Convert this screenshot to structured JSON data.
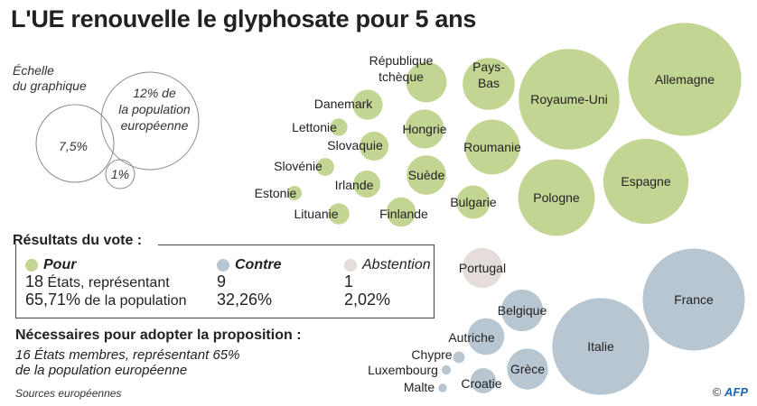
{
  "title": "L'UE renouvelle le glyphosate pour 5 ans",
  "scale": {
    "heading_line1": "Échelle",
    "heading_line2": "du graphique",
    "large_line1": "12% de",
    "large_line2": "la population",
    "large_line3": "européenne",
    "medium": "7,5%",
    "small": "1%"
  },
  "results": {
    "heading": "Résultats du vote :",
    "pour": {
      "label": "Pour",
      "states": "18",
      "states_text": "États, représentant",
      "pct": "65,71%",
      "pct_text": "de la population"
    },
    "contre": {
      "label": "Contre",
      "states": "9",
      "pct": "32,26%"
    },
    "abstention": {
      "label": "Abstention",
      "states": "1",
      "pct": "2,02%"
    }
  },
  "needed": {
    "heading": "Nécessaires pour adopter la proposition :",
    "text_line1": "16 États membres, représentant 65%",
    "text_line2": "de la population européenne"
  },
  "sources": "Sources européennes",
  "credit": {
    "symbol": "©",
    "brand": "AFP"
  },
  "colors": {
    "pour": "#c3d592",
    "contre": "#b8c6d1",
    "abstention": "#e4ddd9",
    "outline": "#8a8a8a"
  },
  "chart_data": {
    "type": "bubble",
    "series": [
      {
        "name": "Pour",
        "values": [
          {
            "label": "République tchèque",
            "value": 2.06
          },
          {
            "label": "Pays-Bas",
            "value": 3.4
          },
          {
            "label": "Royaume-Uni",
            "value": 12.8
          },
          {
            "label": "Allemagne",
            "value": 16.1
          },
          {
            "label": "Danemark",
            "value": 1.13
          },
          {
            "label": "Lettonie",
            "value": 0.38
          },
          {
            "label": "Hongrie",
            "value": 1.92
          },
          {
            "label": "Slovaquie",
            "value": 1.06
          },
          {
            "label": "Roumanie",
            "value": 3.8
          },
          {
            "label": "Slovénie",
            "value": 0.4
          },
          {
            "label": "Suède",
            "value": 1.96
          },
          {
            "label": "Irlande",
            "value": 0.92
          },
          {
            "label": "Estonie",
            "value": 0.26
          },
          {
            "label": "Bulgarie",
            "value": 1.4
          },
          {
            "label": "Pologne",
            "value": 7.4
          },
          {
            "label": "Espagne",
            "value": 9.1
          },
          {
            "label": "Lituanie",
            "value": 0.56
          },
          {
            "label": "Finlande",
            "value": 1.08
          }
        ]
      },
      {
        "name": "Contre",
        "values": [
          {
            "label": "France",
            "value": 13.1
          },
          {
            "label": "Belgique",
            "value": 2.2
          },
          {
            "label": "Autriche",
            "value": 1.7
          },
          {
            "label": "Italie",
            "value": 11.8
          },
          {
            "label": "Chypre",
            "value": 0.17
          },
          {
            "label": "Luxembourg",
            "value": 0.11
          },
          {
            "label": "Grèce",
            "value": 2.1
          },
          {
            "label": "Malte",
            "value": 0.09
          },
          {
            "label": "Croatie",
            "value": 0.8
          }
        ]
      },
      {
        "name": "Abstention",
        "values": [
          {
            "label": "Portugal",
            "value": 2.02
          }
        ]
      }
    ],
    "scale_reference": [
      12,
      7.5,
      1
    ]
  }
}
